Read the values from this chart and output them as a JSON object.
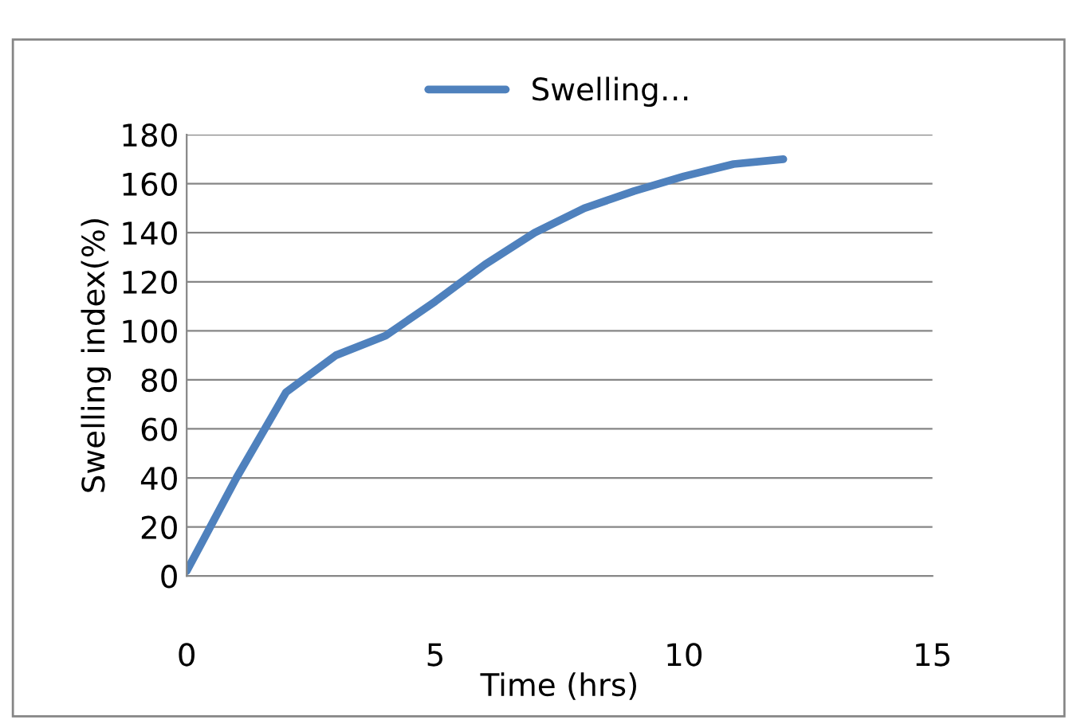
{
  "chart_data": {
    "type": "line",
    "xlabel": "Time (hrs)",
    "ylabel": "Swelling index(%)",
    "x": [
      0,
      1,
      2,
      3,
      4,
      5,
      6,
      7,
      8,
      9,
      10,
      11,
      12
    ],
    "series": [
      {
        "name": "Swelling…",
        "color": "#4f81bd",
        "values": [
          2,
          40,
          75,
          90,
          98,
          112,
          127,
          140,
          150,
          157,
          163,
          168,
          170
        ]
      }
    ],
    "xlim": [
      0,
      15
    ],
    "xticks": [
      0,
      5,
      10,
      15
    ],
    "ylim": [
      0,
      180
    ],
    "yticks": [
      0,
      20,
      40,
      60,
      80,
      100,
      120,
      140,
      160,
      180
    ],
    "grid": "y",
    "legend": "top",
    "marker": "none",
    "line_style": "solid"
  }
}
